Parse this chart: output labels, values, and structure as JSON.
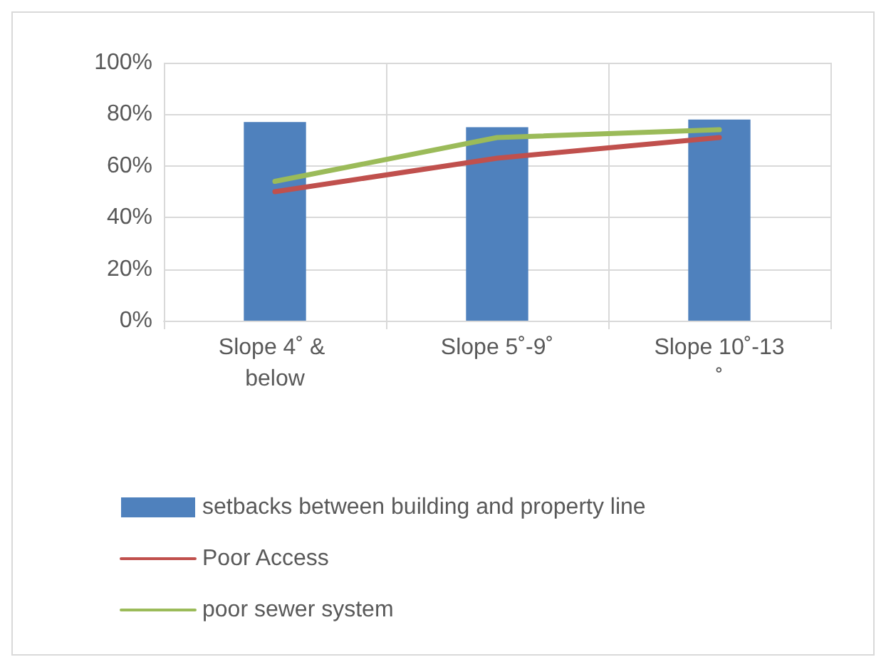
{
  "chart_data": {
    "type": "bar",
    "categories": [
      "Slope 4˚ & below",
      "Slope 5˚-9˚",
      "Slope 10˚-13˚"
    ],
    "series": [
      {
        "name": "setbacks between building and property line",
        "color": "#4f81bd",
        "values": [
          77,
          75,
          78
        ]
      },
      {
        "name": "Poor Access",
        "type": "line",
        "color": "#c0504d",
        "values": [
          50,
          63,
          71
        ]
      },
      {
        "name": "poor sewer system",
        "type": "line",
        "color": "#9bbb59",
        "values": [
          54,
          71,
          74
        ]
      }
    ],
    "ylim": [
      0,
      100
    ],
    "yticks": [
      {
        "value": 0,
        "label": "0%"
      },
      {
        "value": 20,
        "label": "20%"
      },
      {
        "value": 40,
        "label": "40%"
      },
      {
        "value": 60,
        "label": "60%"
      },
      {
        "value": 80,
        "label": "80%"
      },
      {
        "value": 100,
        "label": "100%"
      }
    ],
    "grid": true,
    "legend": "bottom",
    "marker": "none",
    "line_style": "solid"
  }
}
